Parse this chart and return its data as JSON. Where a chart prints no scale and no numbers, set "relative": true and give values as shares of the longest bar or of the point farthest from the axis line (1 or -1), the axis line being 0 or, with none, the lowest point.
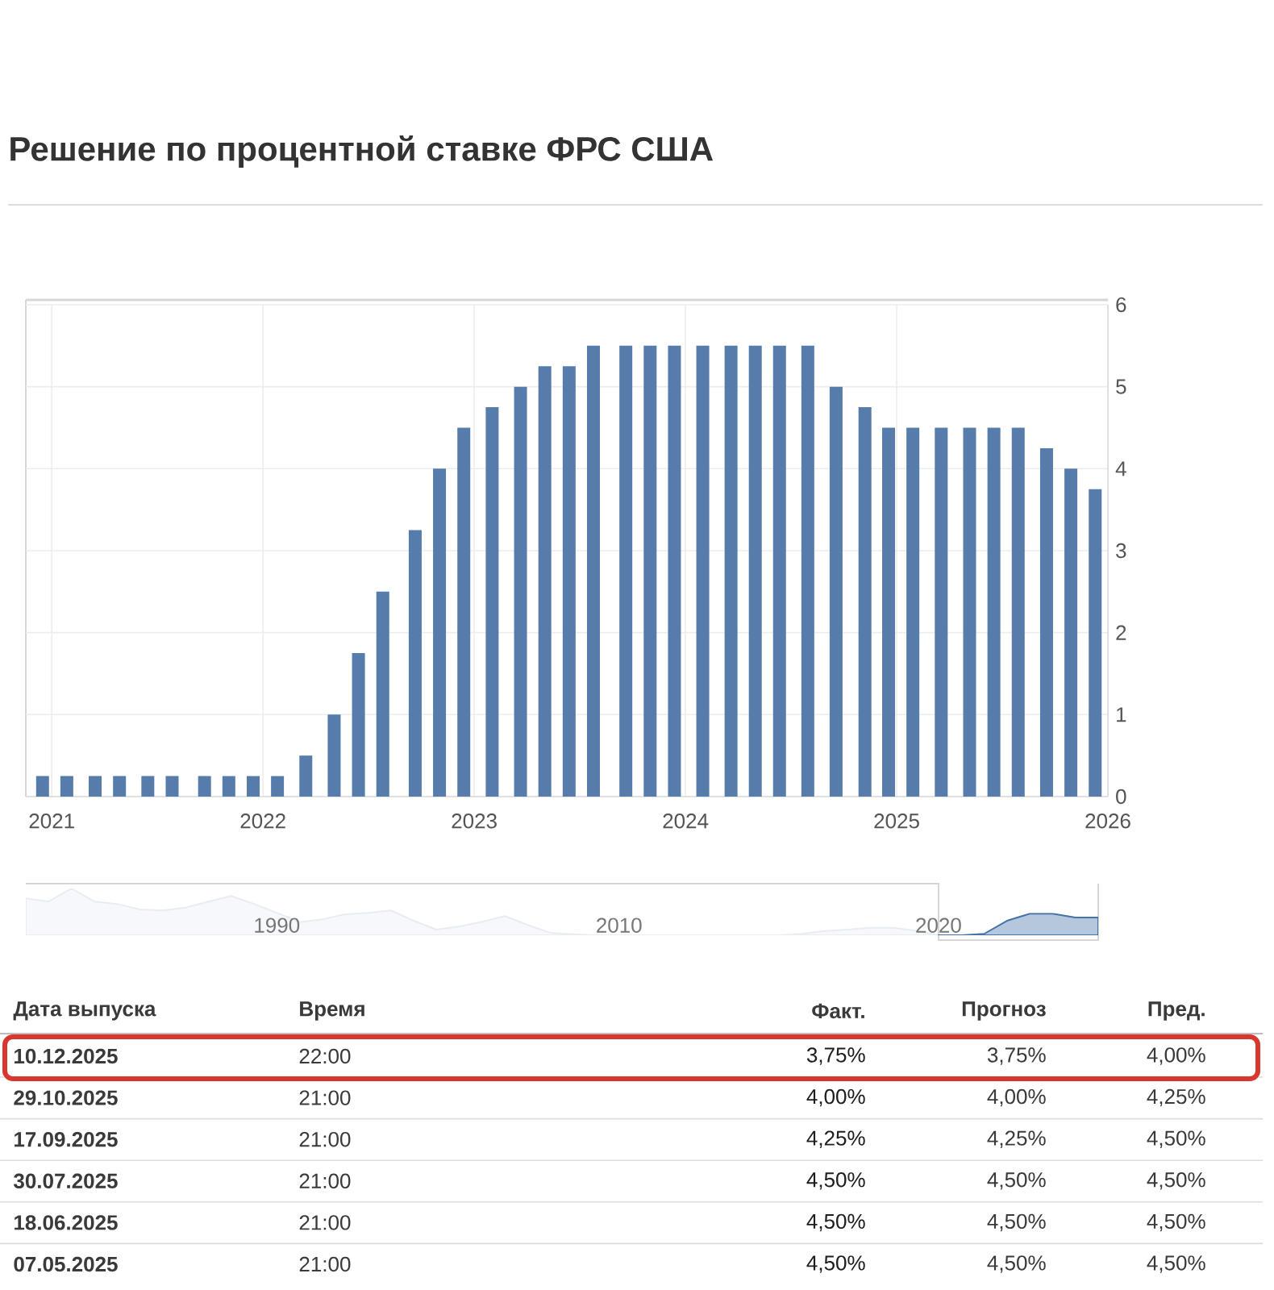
{
  "chart_data": [
    {
      "type": "bar",
      "title": "Решение по процентной ставке ФРС США",
      "x": [
        "2020-12-16",
        "2021-01-27",
        "2021-03-17",
        "2021-04-28",
        "2021-06-16",
        "2021-07-28",
        "2021-09-22",
        "2021-11-03",
        "2021-12-15",
        "2022-01-26",
        "2022-03-16",
        "2022-05-04",
        "2022-06-15",
        "2022-07-27",
        "2022-09-21",
        "2022-11-02",
        "2022-12-14",
        "2023-02-01",
        "2023-03-22",
        "2023-05-03",
        "2023-06-14",
        "2023-07-26",
        "2023-09-20",
        "2023-11-01",
        "2023-12-13",
        "2024-01-31",
        "2024-03-20",
        "2024-05-01",
        "2024-06-12",
        "2024-07-31",
        "2024-09-18",
        "2024-11-07",
        "2024-12-18",
        "2025-01-29",
        "2025-03-19",
        "2025-05-07",
        "2025-06-18",
        "2025-07-30",
        "2025-09-17",
        "2025-10-29",
        "2025-12-10"
      ],
      "values": [
        0.25,
        0.25,
        0.25,
        0.25,
        0.25,
        0.25,
        0.25,
        0.25,
        0.25,
        0.25,
        0.5,
        1.0,
        1.75,
        2.5,
        3.25,
        4.0,
        4.5,
        4.75,
        5.0,
        5.25,
        5.25,
        5.5,
        5.5,
        5.5,
        5.5,
        5.5,
        5.5,
        5.5,
        5.5,
        5.5,
        5.0,
        4.75,
        4.5,
        4.5,
        4.5,
        4.5,
        4.5,
        4.5,
        4.25,
        4.0,
        3.75
      ],
      "color": "#557cab",
      "xlim": [
        "2020-11-17",
        "2026-01-01"
      ],
      "xticks": [
        "2021",
        "2022",
        "2023",
        "2024",
        "2025",
        "2026"
      ],
      "ylim": [
        0,
        6
      ],
      "yticks": [
        0,
        1,
        2,
        3,
        4,
        5,
        6
      ],
      "grid": true,
      "annotations": [
        "Дата выпуска",
        "Время",
        "Факт.",
        "Прогноз",
        "Пред.",
        "10.12.2025",
        "22:00",
        "3,75%",
        "3,75%",
        "4,00%",
        "29.10.2025",
        "21:00",
        "4,00%",
        "4,00%",
        "4,25%",
        "17.09.2025",
        "21:00",
        "4,25%",
        "4,25%",
        "4,50%",
        "30.07.2025",
        "21:00",
        "4,50%",
        "4,50%",
        "4,50%",
        "18.06.2025",
        "21:00",
        "4,50%",
        "4,50%",
        "4,50%",
        "07.05.2025",
        "21:00",
        "4,50%",
        "4,50%",
        "4,50%"
      ]
    },
    {
      "type": "area",
      "relative": true,
      "categories": [
        null,
        null,
        null,
        null,
        null,
        null,
        null,
        null,
        null,
        null,
        null,
        "1990",
        null,
        null,
        null,
        null,
        null,
        null,
        null,
        null,
        null,
        null,
        null,
        null,
        null,
        null,
        "2010",
        null,
        null,
        null,
        null,
        null,
        null,
        null,
        null,
        null,
        null,
        null,
        null,
        null,
        "2020",
        null,
        null,
        null,
        null,
        null,
        null,
        null
      ],
      "series": [
        {
          "color": "#e8edf4",
          "values": [
            0.79,
            0.72,
            1.0,
            0.72,
            0.67,
            0.55,
            0.53,
            0.59,
            0.72,
            0.84,
            0.67,
            0.48,
            0.28,
            0.34,
            0.45,
            0.48,
            0.53,
            0.31,
            0.12,
            0.19,
            0.29,
            0.41,
            0.22,
            0.05,
            0.02,
            0,
            0,
            0,
            0,
            0,
            0,
            0,
            0,
            0,
            0.03,
            0.09,
            0.12,
            0.16,
            0.16,
            0.1,
            0,
            null,
            null,
            null,
            null,
            null,
            null,
            null
          ]
        },
        {
          "color": "#4572a7",
          "values": [
            null,
            null,
            null,
            null,
            null,
            null,
            null,
            null,
            null,
            null,
            null,
            null,
            null,
            null,
            null,
            null,
            null,
            null,
            null,
            null,
            null,
            null,
            null,
            null,
            null,
            null,
            null,
            null,
            null,
            null,
            null,
            null,
            null,
            null,
            null,
            null,
            null,
            null,
            null,
            null,
            0,
            0,
            0.03,
            0.31,
            0.46,
            0.46,
            0.38,
            0.38
          ]
        }
      ]
    }
  ]
}
